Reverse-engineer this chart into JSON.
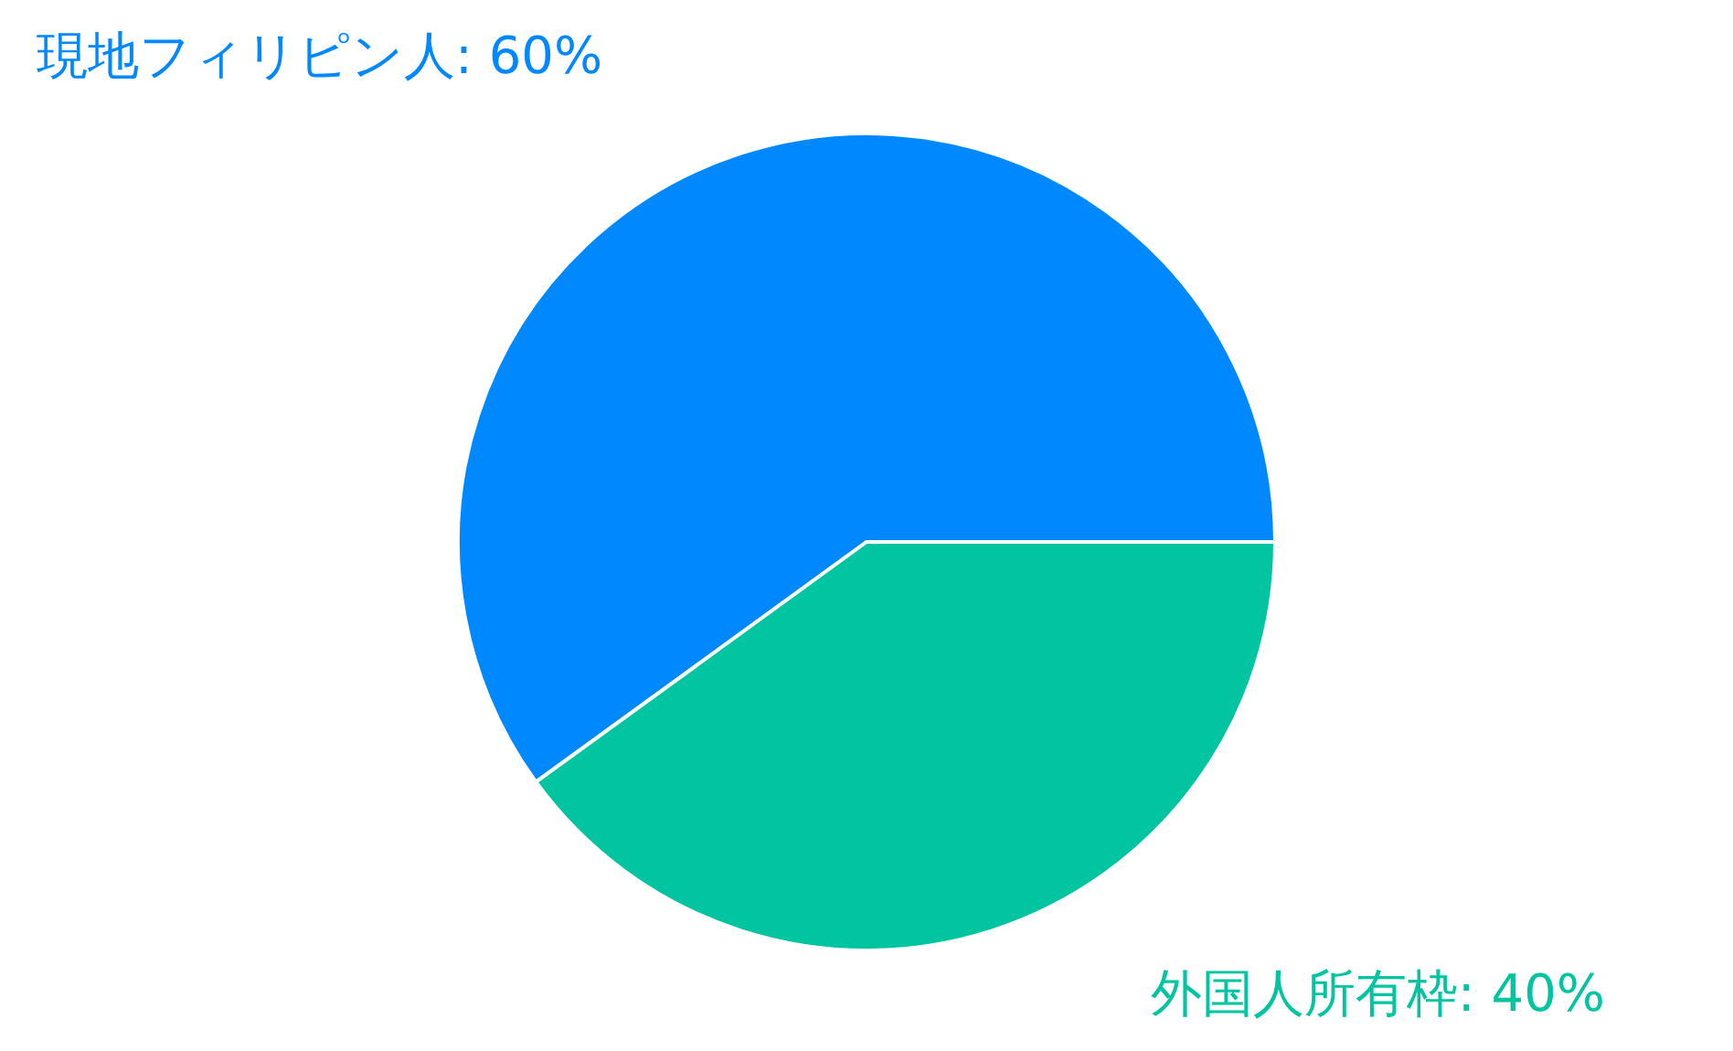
{
  "chart_data": {
    "type": "pie",
    "categories": [
      "現地フィリピン人",
      "外国人所有枠"
    ],
    "values": [
      60,
      40
    ],
    "colors": [
      "#0088ff",
      "#00c5a0"
    ],
    "value_labels": [
      "60%",
      "40%"
    ],
    "legend": false
  }
}
